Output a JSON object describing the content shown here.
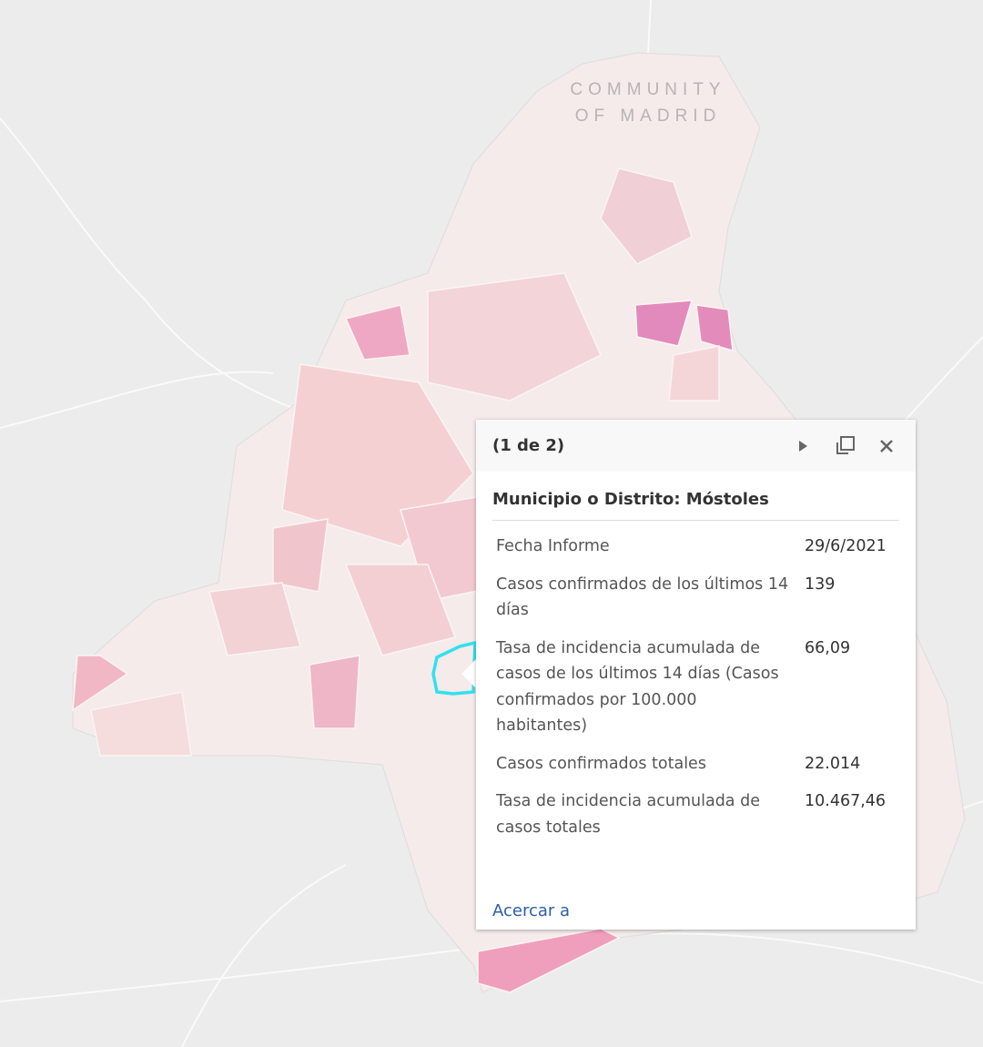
{
  "map": {
    "region_label": [
      "COMMUNITY",
      "OF MADRID"
    ]
  },
  "popup": {
    "pager": "(1 de 2)",
    "title": "Municipio o Distrito: Móstoles",
    "rows": [
      [
        "Fecha Informe",
        "29/6/2021"
      ],
      [
        "Casos confirmados de los últimos 14 días",
        "139"
      ],
      [
        "Tasa de incidencia acumulada de casos de los últimos 14 días (Casos confirmados por 100.000 habitantes)",
        "66,09"
      ],
      [
        "Casos confirmados totales",
        "22.014"
      ],
      [
        "Tasa de incidencia acumulada de casos totales",
        "10.467,46"
      ]
    ],
    "link": "Acercar a"
  }
}
